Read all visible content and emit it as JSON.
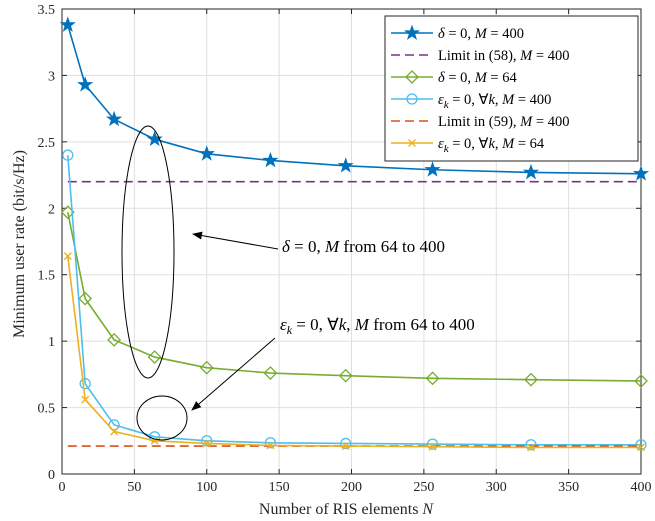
{
  "chart_data": {
    "type": "line",
    "xlabel": "Number of RIS elements N",
    "ylabel": "Minimum user rate (bit/s/Hz)",
    "xlim": [
      0,
      400
    ],
    "ylim": [
      0,
      3.5
    ],
    "xticks": [
      0,
      50,
      100,
      150,
      200,
      250,
      300,
      350,
      400
    ],
    "yticks": [
      0,
      0.5,
      1,
      1.5,
      2,
      2.5,
      3,
      3.5
    ],
    "xtick_labels": [
      "0",
      "50",
      "100",
      "150",
      "200",
      "250",
      "300",
      "350",
      "400"
    ],
    "ytick_labels": [
      "0",
      "0.5",
      "1",
      "1.5",
      "2",
      "2.5",
      "3",
      "3.5"
    ],
    "grid": true,
    "legend_position": "top-right",
    "series": [
      {
        "name": "δ = 0, M = 400",
        "color": "#0072BD",
        "marker": "star",
        "dash": false,
        "x": [
          4,
          16,
          36,
          64,
          100,
          144,
          196,
          256,
          324,
          400
        ],
        "y": [
          3.38,
          2.93,
          2.67,
          2.52,
          2.41,
          2.36,
          2.32,
          2.29,
          2.27,
          2.26
        ]
      },
      {
        "name": "Limit in (58), M = 400",
        "color": "#7E2F8E",
        "marker": "none",
        "dash": true,
        "x": [
          4,
          400
        ],
        "y": [
          2.2,
          2.2
        ]
      },
      {
        "name": "δ = 0, M = 64",
        "color": "#77AC30",
        "marker": "diamond",
        "dash": false,
        "x": [
          4,
          16,
          36,
          64,
          100,
          144,
          196,
          256,
          324,
          400
        ],
        "y": [
          1.97,
          1.32,
          1.01,
          0.88,
          0.8,
          0.76,
          0.74,
          0.72,
          0.71,
          0.7
        ]
      },
      {
        "name": "ε_k = 0, ∀k, M = 400",
        "color": "#4DBEEE",
        "marker": "circle",
        "dash": false,
        "x": [
          4,
          16,
          36,
          64,
          100,
          144,
          196,
          256,
          324,
          400
        ],
        "y": [
          2.4,
          0.68,
          0.37,
          0.28,
          0.25,
          0.235,
          0.23,
          0.225,
          0.22,
          0.22
        ]
      },
      {
        "name": "Limit in (59), M = 400",
        "color": "#D95319",
        "marker": "none",
        "dash": true,
        "x": [
          4,
          400
        ],
        "y": [
          0.21,
          0.21
        ]
      },
      {
        "name": "ε_k = 0, ∀k, M = 64",
        "color": "#EDB120",
        "marker": "x",
        "dash": false,
        "x": [
          4,
          16,
          36,
          64,
          100,
          144,
          196,
          256,
          324,
          400
        ],
        "y": [
          1.64,
          0.56,
          0.32,
          0.25,
          0.23,
          0.215,
          0.21,
          0.205,
          0.2,
          0.2
        ]
      }
    ],
    "annotations": [
      {
        "text": "δ = 0, M from 64 to 400"
      },
      {
        "text": "ε_k = 0, ∀k, M from 64 to 400"
      }
    ],
    "legend": [
      {
        "label": "δ = 0, M = 400"
      },
      {
        "label": "Limit in (58), M = 400"
      },
      {
        "label": "δ = 0, M = 64"
      },
      {
        "label": "ε_k = 0, ∀k, M = 400"
      },
      {
        "label": "Limit in (59), M = 400"
      },
      {
        "label": "ε_k = 0, ∀k, M = 64"
      }
    ]
  }
}
